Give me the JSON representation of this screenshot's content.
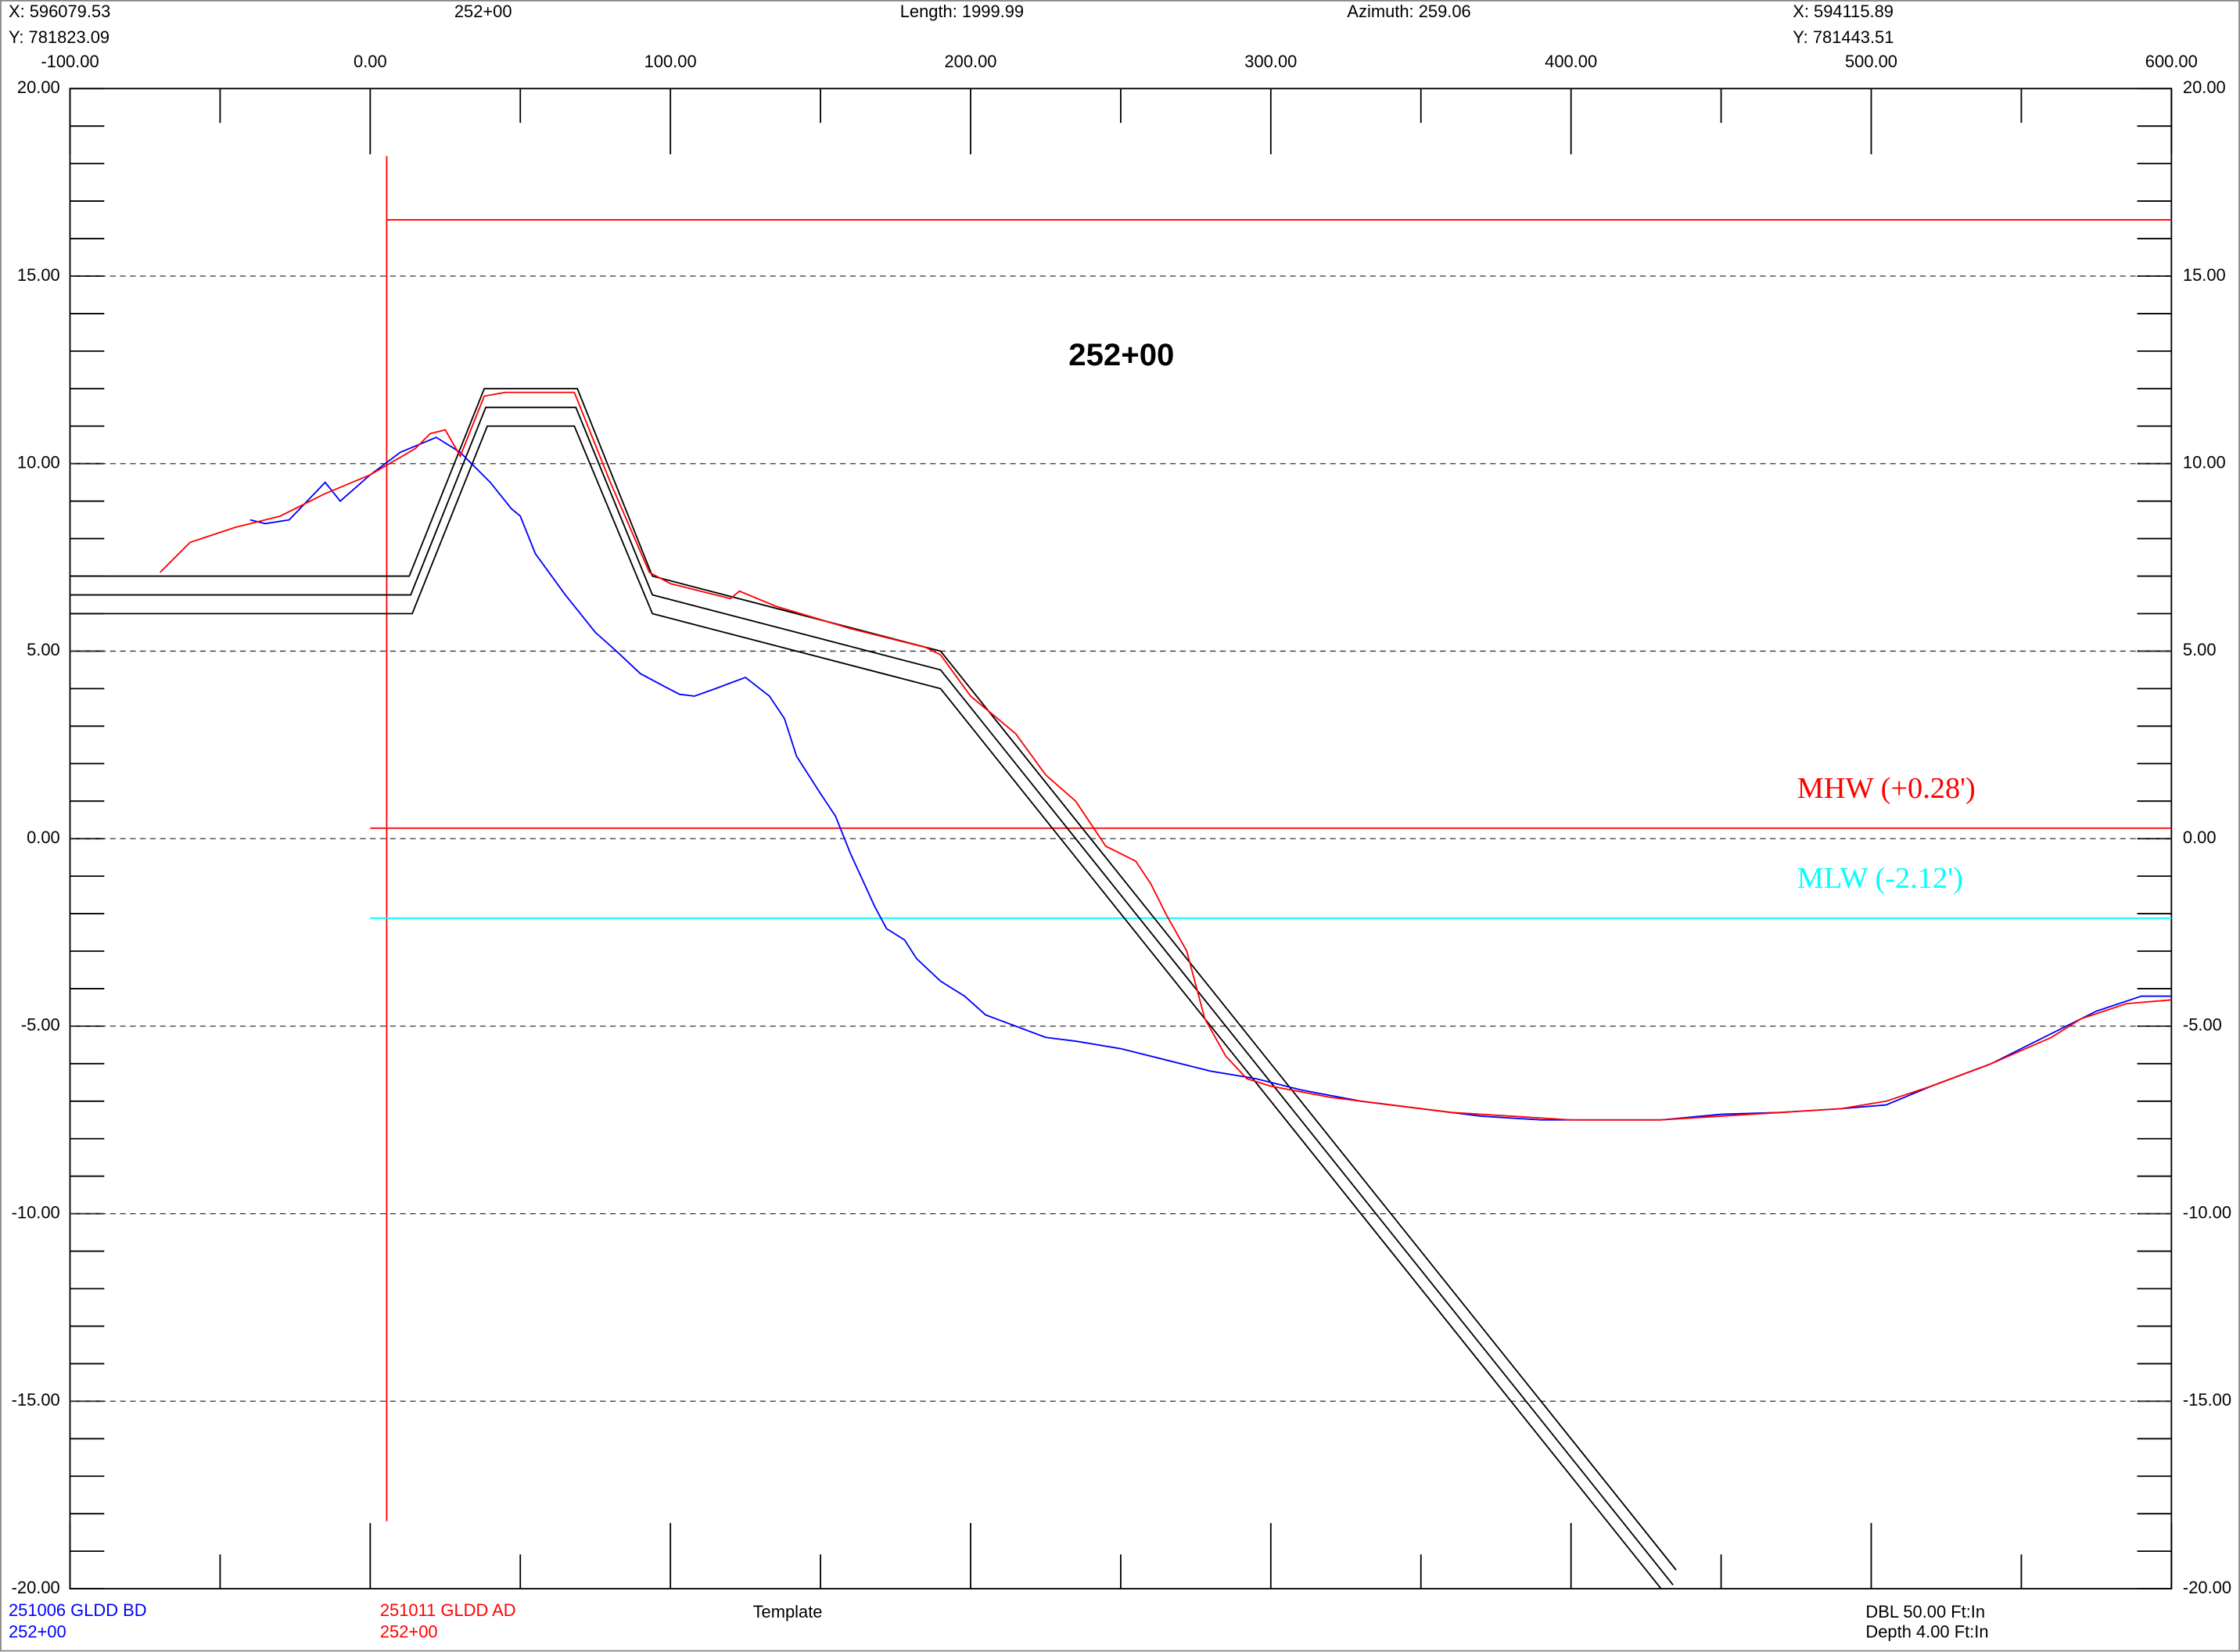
{
  "chart_data": {
    "type": "line",
    "title": "252+00",
    "header": {
      "start_x": "X: 596079.53",
      "start_y": "Y: 781823.09",
      "section": "252+00",
      "length": "Length: 1999.99",
      "azimuth": "Azimuth: 259.06",
      "end_x": "X: 594115.89",
      "end_y": "Y: 781443.51"
    },
    "footer": {
      "dbl": "DBL 50.00 Ft:In",
      "depth": "Depth 4.00 Ft:In"
    },
    "xlim": [
      -100,
      600
    ],
    "ylim": [
      -20,
      20
    ],
    "xticks": [
      {
        "value": -100,
        "label": "-100.00"
      },
      {
        "value": 0,
        "label": "0.00"
      },
      {
        "value": 100,
        "label": "100.00"
      },
      {
        "value": 200,
        "label": "200.00"
      },
      {
        "value": 300,
        "label": "300.00"
      },
      {
        "value": 400,
        "label": "400.00"
      },
      {
        "value": 500,
        "label": "500.00"
      },
      {
        "value": 600,
        "label": "600.00"
      }
    ],
    "xminorticks": [
      -50,
      50,
      150,
      250,
      350,
      450,
      550
    ],
    "yticks": [
      {
        "value": 20,
        "label": "20.00"
      },
      {
        "value": 15,
        "label": "15.00"
      },
      {
        "value": 10,
        "label": "10.00"
      },
      {
        "value": 5,
        "label": "5.00"
      },
      {
        "value": 0,
        "label": "0.00"
      },
      {
        "value": -5,
        "label": "-5.00"
      },
      {
        "value": -10,
        "label": "-10.00"
      },
      {
        "value": -15,
        "label": "-15.00"
      },
      {
        "value": -20,
        "label": "-20.00"
      }
    ],
    "yminorticks": [
      19,
      18,
      17,
      16,
      14,
      13,
      12,
      11,
      9,
      8,
      7,
      6,
      4,
      3,
      2,
      1,
      -1,
      -2,
      -3,
      -4,
      -6,
      -7,
      -8,
      -9,
      -11,
      -12,
      -13,
      -14,
      -16,
      -17,
      -18,
      -19
    ],
    "grid": true,
    "series": [
      {
        "name": "251006 GLDD BD",
        "section": "252+00",
        "color": "#0000ff",
        "x": [
          -40,
          -35,
          -27,
          -15,
          -10,
          0,
          10,
          22,
          30,
          40,
          47,
          50,
          55,
          65,
          75,
          82,
          90,
          97,
          103,
          108,
          115,
          125,
          133,
          138,
          142,
          150,
          155,
          160,
          168,
          172,
          178,
          182,
          190,
          198,
          205,
          215,
          225,
          235,
          250,
          265,
          280,
          295,
          310,
          330,
          350,
          370,
          390,
          410,
          430,
          450,
          470,
          490,
          505,
          520,
          540,
          560,
          575,
          590,
          600
        ],
        "values": [
          8.5,
          8.4,
          8.5,
          9.5,
          9.0,
          9.7,
          10.3,
          10.7,
          10.3,
          9.5,
          8.8,
          8.6,
          7.6,
          6.5,
          5.5,
          5.0,
          4.4,
          4.1,
          3.85,
          3.8,
          4.0,
          4.3,
          3.8,
          3.2,
          2.2,
          1.2,
          0.6,
          -0.4,
          -1.8,
          -2.4,
          -2.7,
          -3.2,
          -3.8,
          -4.2,
          -4.7,
          -5.0,
          -5.3,
          -5.4,
          -5.6,
          -5.9,
          -6.2,
          -6.4,
          -6.7,
          -7.0,
          -7.2,
          -7.4,
          -7.5,
          -7.5,
          -7.5,
          -7.35,
          -7.3,
          -7.2,
          -7.1,
          -6.6,
          -6.0,
          -5.2,
          -4.6,
          -4.2,
          -4.2
        ]
      },
      {
        "name": "251011 GLDD AD",
        "section": "252+00",
        "color": "#ff0000",
        "x": [
          -70,
          -65,
          -60,
          -45,
          -30,
          -15,
          0,
          15,
          20,
          25,
          30,
          38,
          45,
          68,
          80,
          93,
          100,
          110,
          120,
          123,
          135,
          160,
          185,
          190,
          200,
          215,
          225,
          235,
          245,
          255,
          260,
          265,
          272,
          278,
          285,
          292,
          300,
          320,
          340,
          360,
          380,
          400,
          430,
          450,
          470,
          490,
          505,
          520,
          540,
          560,
          570,
          585,
          600
        ],
        "values": [
          7.1,
          7.5,
          7.9,
          8.3,
          8.6,
          9.2,
          9.7,
          10.4,
          10.8,
          10.9,
          10.2,
          11.8,
          11.9,
          11.9,
          9.5,
          7.1,
          6.8,
          6.6,
          6.4,
          6.6,
          6.2,
          5.6,
          5.1,
          4.9,
          3.8,
          2.8,
          1.7,
          1.0,
          -0.2,
          -0.6,
          -1.2,
          -2.0,
          -3.0,
          -4.8,
          -5.8,
          -6.4,
          -6.6,
          -6.9,
          -7.1,
          -7.3,
          -7.4,
          -7.5,
          -7.5,
          -7.4,
          -7.3,
          -7.2,
          -7.0,
          -6.6,
          -6.0,
          -5.3,
          -4.8,
          -4.4,
          -4.3
        ]
      }
    ],
    "template": {
      "name": "Template",
      "color": "#000000",
      "lines": [
        {
          "x": [
            -100,
            13,
            38,
            69,
            94,
            190,
            435
          ],
          "values": [
            7,
            7,
            12,
            12,
            7,
            5,
            -19.5
          ]
        },
        {
          "x": [
            -100,
            13.5,
            38.5,
            68.5,
            94,
            190,
            434
          ],
          "values": [
            6.5,
            6.5,
            11.5,
            11.5,
            6.5,
            4.5,
            -19.9
          ]
        },
        {
          "x": [
            -100,
            14,
            39,
            68,
            94,
            190,
            430
          ],
          "values": [
            6,
            6,
            11,
            11,
            6,
            4,
            -20
          ]
        }
      ]
    },
    "ref_lines": [
      {
        "label": "MHW (+0.28')",
        "value": 0.28,
        "color": "#ff0000",
        "x_range": [
          0,
          600
        ]
      },
      {
        "label": "MLW (-2.12')",
        "value": -2.12,
        "color": "#00ffff",
        "x_range": [
          0,
          600
        ]
      }
    ],
    "boundary": {
      "color": "#ff0000",
      "x": 5.5,
      "y_range": [
        -18.2,
        18.2
      ],
      "y": 16.5,
      "x_range": [
        5.5,
        600
      ]
    }
  }
}
